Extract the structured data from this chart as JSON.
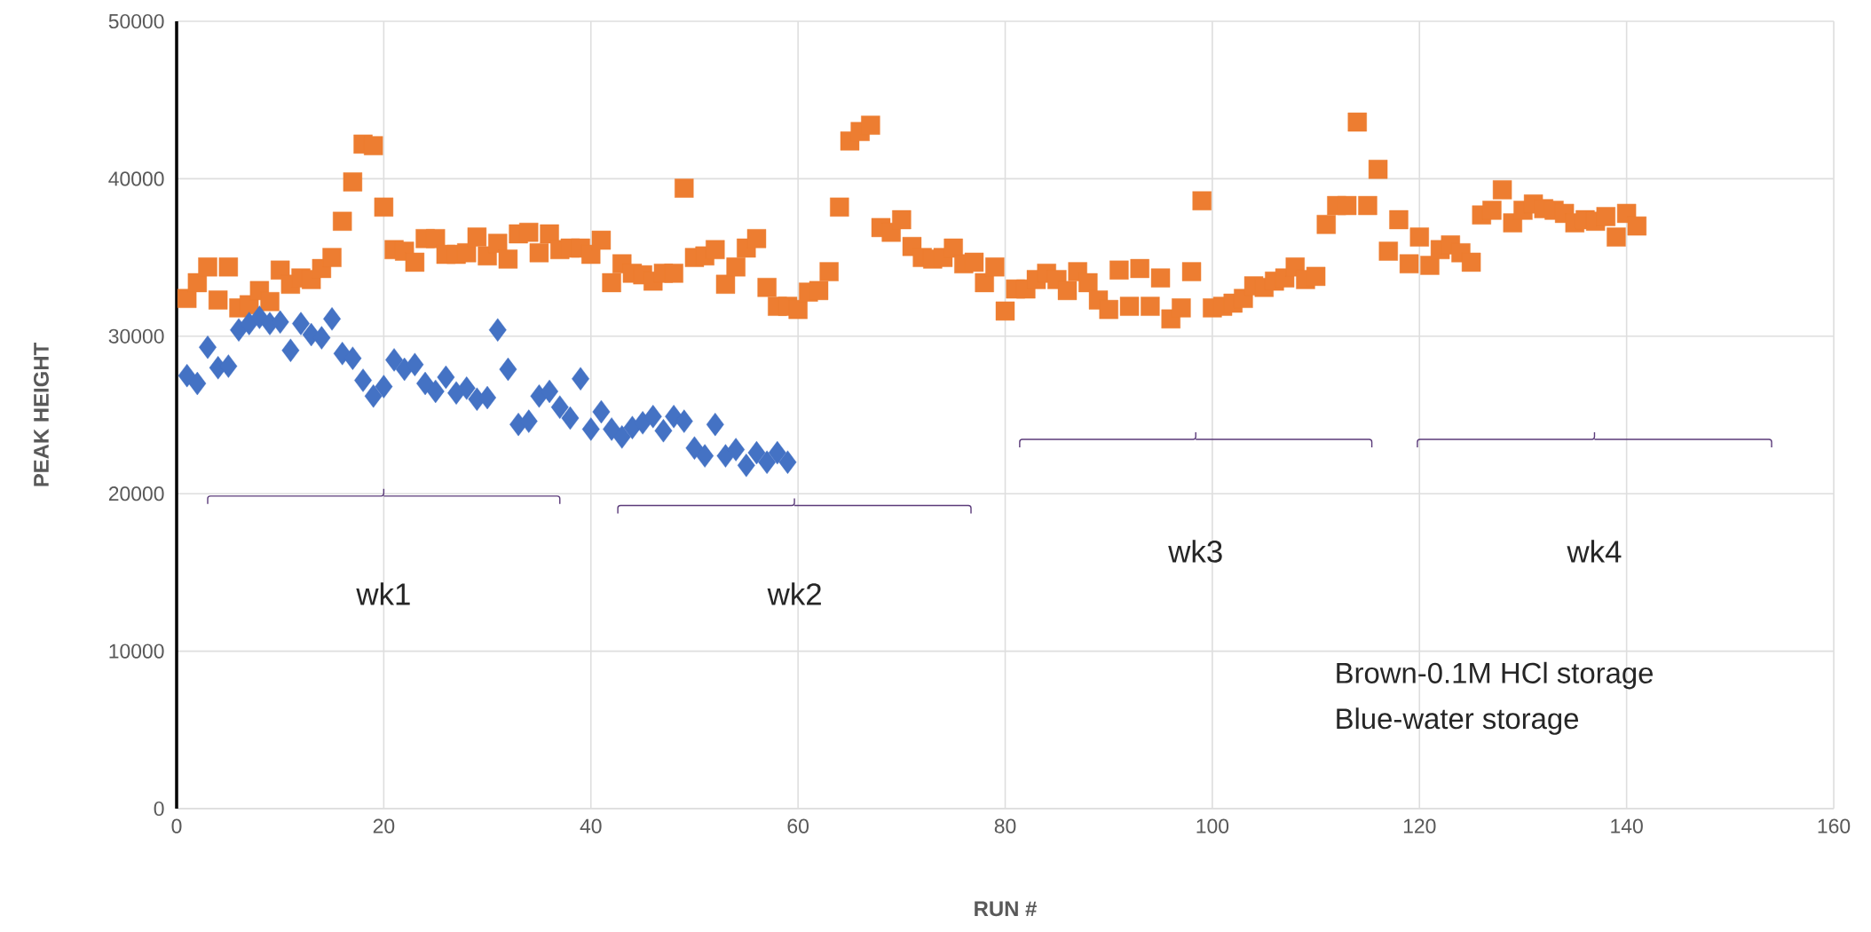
{
  "chart_data": {
    "type": "scatter",
    "xlabel": "RUN #",
    "ylabel": "PEAK HEIGHT",
    "xlim": [
      0,
      160
    ],
    "xticks": [
      0,
      20,
      40,
      60,
      80,
      100,
      120,
      140,
      160
    ],
    "ylim": [
      0,
      50000
    ],
    "yticks": [
      0,
      10000,
      20000,
      30000,
      40000,
      50000
    ],
    "grid": true,
    "annotations": [
      "wk1",
      "wk2",
      "wk3",
      "wk4",
      "Brown-0.1M HCl storage",
      "Blue-water storage"
    ],
    "series": [
      {
        "color": "#ed7d31",
        "marker": "square",
        "x": [
          1,
          2,
          3,
          4,
          5,
          6,
          7,
          8,
          9,
          10,
          11,
          12,
          13,
          14,
          15,
          16,
          17,
          18,
          19,
          20,
          21,
          22,
          23,
          24,
          25,
          26,
          27,
          28,
          29,
          30,
          31,
          32,
          33,
          34,
          35,
          36,
          37,
          38,
          39,
          40,
          41,
          42,
          43,
          44,
          45,
          46,
          47,
          48,
          49,
          50,
          51,
          52,
          53,
          54,
          55,
          56,
          57,
          58,
          59,
          60,
          61,
          62,
          63,
          64,
          65,
          66,
          67,
          68,
          69,
          70,
          71,
          72,
          73,
          74,
          75,
          76,
          77,
          78,
          79,
          80,
          81,
          82,
          83,
          84,
          85,
          86,
          87,
          88,
          89,
          90,
          91,
          92,
          93,
          94,
          95,
          96,
          97,
          98,
          99,
          100,
          101,
          102,
          103,
          104,
          105,
          106,
          107,
          108,
          109,
          110,
          111,
          112,
          113,
          114,
          115,
          116,
          117,
          118,
          119,
          120,
          121,
          122,
          123,
          124,
          125,
          126,
          127,
          128,
          129,
          130,
          131,
          132,
          133,
          134,
          135,
          136,
          137,
          138,
          139,
          140,
          141
        ],
        "values": [
          32400,
          33400,
          34400,
          32300,
          34400,
          31800,
          32000,
          32900,
          32200,
          34200,
          33300,
          33700,
          33600,
          34300,
          35000,
          37300,
          39800,
          42200,
          42100,
          38200,
          35500,
          35400,
          34700,
          36200,
          36200,
          35200,
          35200,
          35300,
          36300,
          35100,
          35900,
          34900,
          36500,
          36600,
          35300,
          36500,
          35500,
          35600,
          35600,
          35200,
          36100,
          33400,
          34600,
          34000,
          33900,
          33500,
          34000,
          34000,
          39400,
          35000,
          35100,
          35500,
          33300,
          34400,
          35600,
          36200,
          33100,
          31900,
          31900,
          31700,
          32800,
          32900,
          34100,
          38200,
          42400,
          43000,
          43400,
          36900,
          36600,
          37400,
          35700,
          35000,
          34900,
          35000,
          35600,
          34600,
          34700,
          33400,
          34400,
          31600,
          33000,
          33000,
          33600,
          34000,
          33600,
          32900,
          34100,
          33400,
          32300,
          31700,
          34200,
          31900,
          34300,
          31900,
          33700,
          31100,
          31800,
          34100,
          38600,
          31800,
          31900,
          32100,
          32400,
          33200,
          33100,
          33500,
          33700,
          34400,
          33600,
          33800,
          37100,
          38300,
          38300,
          43600,
          38300,
          40600,
          35400,
          37400,
          34600,
          36300,
          34500,
          35500,
          35800,
          35300,
          34700,
          37700,
          38000,
          39300,
          37200,
          38000,
          38400,
          38100,
          38000,
          37800,
          37200,
          37400,
          37300,
          37600,
          36300,
          37800,
          37000
        ]
      },
      {
        "color": "#4472c4",
        "marker": "diamond",
        "x": [
          1,
          2,
          3,
          4,
          5,
          6,
          7,
          8,
          9,
          10,
          11,
          12,
          13,
          14,
          15,
          16,
          17,
          18,
          19,
          20,
          21,
          22,
          23,
          24,
          25,
          26,
          27,
          28,
          29,
          30,
          31,
          32,
          33,
          34,
          35,
          36,
          37,
          38,
          39,
          40,
          41,
          42,
          43,
          44,
          45,
          46,
          47,
          48,
          49,
          50,
          51,
          52,
          53,
          54,
          55,
          56,
          57,
          58,
          59
        ],
        "values": [
          27500,
          27000,
          29300,
          28000,
          28100,
          30400,
          30800,
          31200,
          30800,
          30900,
          29100,
          30800,
          30100,
          29900,
          31100,
          28900,
          28600,
          27200,
          26200,
          26800,
          28500,
          27900,
          28200,
          27000,
          26500,
          27400,
          26400,
          26700,
          26000,
          26100,
          30400,
          27900,
          24400,
          24600,
          26200,
          26500,
          25500,
          24800,
          27300,
          24100,
          25200,
          24100,
          23600,
          24200,
          24500,
          24900,
          24000,
          24900,
          24600,
          22900,
          22400,
          24400,
          22400,
          22800,
          21800,
          22600,
          22000,
          22600,
          22000
        ]
      }
    ]
  }
}
